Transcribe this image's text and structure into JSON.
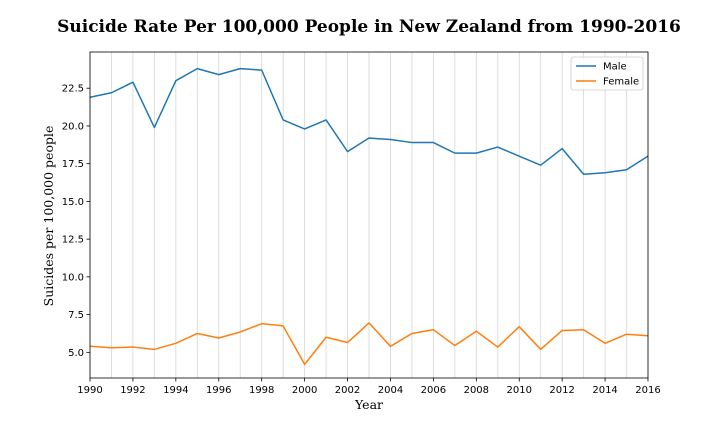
{
  "chart_data": {
    "type": "line",
    "title": "Suicide Rate Per 100,000 People in New Zealand from 1990-2016",
    "xlabel": "Year",
    "ylabel": "Suicides per 100,000 people",
    "x": [
      1990,
      1991,
      1992,
      1993,
      1994,
      1995,
      1996,
      1997,
      1998,
      1999,
      2000,
      2001,
      2002,
      2003,
      2004,
      2005,
      2006,
      2007,
      2008,
      2009,
      2010,
      2011,
      2012,
      2013,
      2014,
      2015,
      2016
    ],
    "xlim": [
      1990,
      2016
    ],
    "ylim": [
      3.3,
      24.9
    ],
    "x_ticks": [
      1990,
      1992,
      1994,
      1996,
      1998,
      2000,
      2002,
      2004,
      2006,
      2008,
      2010,
      2012,
      2014,
      2016
    ],
    "y_ticks": [
      5.0,
      7.5,
      10.0,
      12.5,
      15.0,
      17.5,
      20.0,
      22.5
    ],
    "y_tick_labels": [
      "5.0",
      "7.5",
      "10.0",
      "12.5",
      "15.0",
      "17.5",
      "20.0",
      "22.5"
    ],
    "grid": "vertical",
    "legend_position": "top-right",
    "series": [
      {
        "name": "Male",
        "color": "#1f77b4",
        "values": [
          21.9,
          22.2,
          22.9,
          19.9,
          23.0,
          23.8,
          23.4,
          23.8,
          23.7,
          20.4,
          19.8,
          20.4,
          18.3,
          19.2,
          19.1,
          18.9,
          18.9,
          18.2,
          18.2,
          18.6,
          18.0,
          17.4,
          18.5,
          16.8,
          16.9,
          17.1,
          18.0
        ]
      },
      {
        "name": "Female",
        "color": "#ff7f0e",
        "values": [
          5.4,
          5.3,
          5.35,
          5.2,
          5.6,
          6.25,
          5.95,
          6.35,
          6.9,
          6.75,
          4.2,
          6.0,
          5.65,
          6.95,
          5.4,
          6.25,
          6.5,
          5.45,
          6.4,
          5.35,
          6.7,
          5.2,
          6.45,
          6.5,
          5.6,
          6.2,
          6.1
        ]
      }
    ]
  }
}
